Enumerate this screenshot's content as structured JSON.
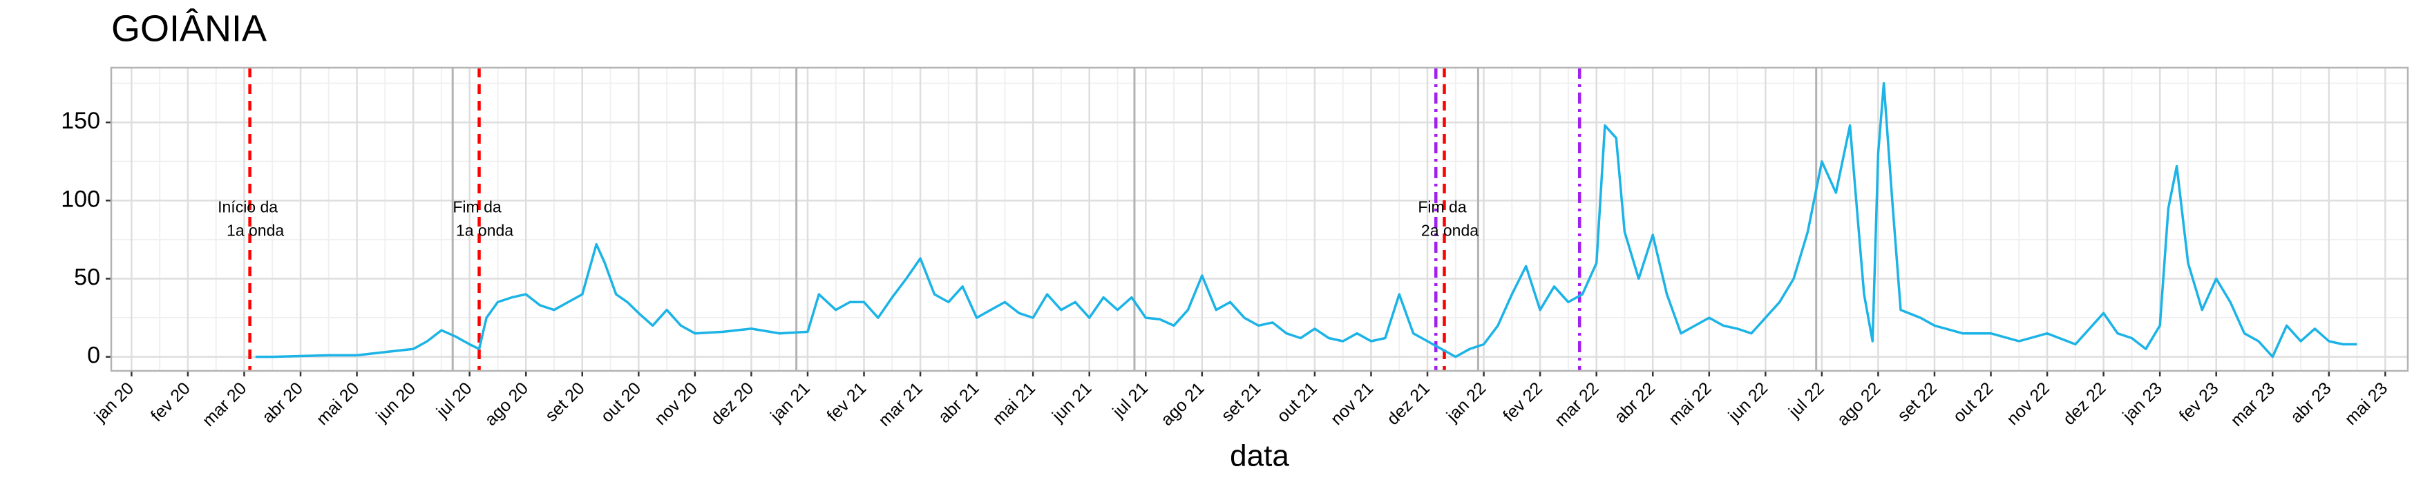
{
  "chart_data": {
    "type": "line",
    "title": "GOIÂNIA",
    "x_label": "data",
    "xlim": [
      -0.36,
      40.4
    ],
    "ylim": [
      -9,
      185
    ],
    "grid": true,
    "xticks": [
      {
        "value": 0,
        "label": "jan 20"
      },
      {
        "value": 1,
        "label": "fev 20"
      },
      {
        "value": 2,
        "label": "mar 20"
      },
      {
        "value": 3,
        "label": "abr 20"
      },
      {
        "value": 4,
        "label": "mai 20"
      },
      {
        "value": 5,
        "label": "jun 20"
      },
      {
        "value": 6,
        "label": "jul 20"
      },
      {
        "value": 7,
        "label": "ago 20"
      },
      {
        "value": 8,
        "label": "set 20"
      },
      {
        "value": 9,
        "label": "out 20"
      },
      {
        "value": 10,
        "label": "nov 20"
      },
      {
        "value": 11,
        "label": "dez 20"
      },
      {
        "value": 12,
        "label": "jan 21"
      },
      {
        "value": 13,
        "label": "fev 21"
      },
      {
        "value": 14,
        "label": "mar 21"
      },
      {
        "value": 15,
        "label": "abr 21"
      },
      {
        "value": 16,
        "label": "mai 21"
      },
      {
        "value": 17,
        "label": "jun 21"
      },
      {
        "value": 18,
        "label": "jul 21"
      },
      {
        "value": 19,
        "label": "ago 21"
      },
      {
        "value": 20,
        "label": "set 21"
      },
      {
        "value": 21,
        "label": "out 21"
      },
      {
        "value": 22,
        "label": "nov 21"
      },
      {
        "value": 23,
        "label": "dez 21"
      },
      {
        "value": 24,
        "label": "jan 22"
      },
      {
        "value": 25,
        "label": "fev 22"
      },
      {
        "value": 26,
        "label": "mar 22"
      },
      {
        "value": 27,
        "label": "abr 22"
      },
      {
        "value": 28,
        "label": "mai 22"
      },
      {
        "value": 29,
        "label": "jun 22"
      },
      {
        "value": 30,
        "label": "jul 22"
      },
      {
        "value": 31,
        "label": "ago 22"
      },
      {
        "value": 32,
        "label": "set 22"
      },
      {
        "value": 33,
        "label": "out 22"
      },
      {
        "value": 34,
        "label": "nov 22"
      },
      {
        "value": 35,
        "label": "dez 22"
      },
      {
        "value": 36,
        "label": "jan 23"
      },
      {
        "value": 37,
        "label": "fev 23"
      },
      {
        "value": 38,
        "label": "mar 23"
      },
      {
        "value": 39,
        "label": "abr 23"
      },
      {
        "value": 40,
        "label": "mai 23"
      }
    ],
    "yticks": [
      0,
      50,
      100,
      150
    ],
    "series": [
      {
        "color": "#1cb3e6",
        "x": [
          2.2,
          2.5,
          3,
          3.5,
          4,
          4.5,
          5,
          5.25,
          5.5,
          5.75,
          6,
          6.17,
          6.3,
          6.5,
          6.75,
          7,
          7.25,
          7.5,
          7.75,
          8,
          8.25,
          8.4,
          8.6,
          8.8,
          9,
          9.25,
          9.5,
          9.75,
          10,
          10.5,
          11,
          11.5,
          12,
          12.2,
          12.5,
          12.75,
          13,
          13.25,
          13.5,
          13.75,
          14,
          14.25,
          14.5,
          14.75,
          15,
          15.25,
          15.5,
          15.75,
          16,
          16.25,
          16.5,
          16.75,
          17,
          17.25,
          17.5,
          17.75,
          18,
          18.25,
          18.5,
          18.75,
          19,
          19.25,
          19.5,
          19.75,
          20,
          20.25,
          20.5,
          20.75,
          21,
          21.25,
          21.5,
          21.75,
          22,
          22.25,
          22.5,
          22.75,
          23,
          23.25,
          23.5,
          23.75,
          24,
          24.25,
          24.5,
          24.75,
          25,
          25.25,
          25.5,
          25.75,
          26,
          26.15,
          26.35,
          26.5,
          26.75,
          27,
          27.25,
          27.5,
          27.75,
          28,
          28.25,
          28.5,
          28.75,
          29,
          29.25,
          29.5,
          29.75,
          30,
          30.25,
          30.5,
          30.75,
          30.9,
          31,
          31.1,
          31.25,
          31.4,
          31.75,
          32,
          32.5,
          33,
          33.5,
          34,
          34.5,
          35,
          35.25,
          35.5,
          35.75,
          36,
          36.15,
          36.3,
          36.5,
          36.75,
          37,
          37.25,
          37.5,
          37.75,
          38,
          38.25,
          38.5,
          38.75,
          39,
          39.25,
          39.5
        ],
        "values": [
          0,
          0,
          0.5,
          1,
          1,
          3,
          5,
          10,
          17,
          13,
          8,
          5,
          25,
          35,
          38,
          40,
          33,
          30,
          35,
          40,
          72,
          60,
          40,
          35,
          28,
          20,
          30,
          20,
          15,
          16,
          18,
          15,
          16,
          40,
          30,
          35,
          35,
          25,
          38,
          50,
          63,
          40,
          35,
          45,
          25,
          30,
          35,
          28,
          25,
          40,
          30,
          35,
          25,
          38,
          30,
          38,
          25,
          24,
          20,
          30,
          52,
          30,
          35,
          25,
          20,
          22,
          15,
          12,
          18,
          12,
          10,
          15,
          10,
          12,
          40,
          15,
          10,
          5,
          0,
          5,
          8,
          20,
          40,
          58,
          30,
          45,
          35,
          40,
          60,
          148,
          140,
          80,
          50,
          78,
          40,
          15,
          20,
          25,
          20,
          18,
          15,
          25,
          35,
          50,
          80,
          125,
          105,
          148,
          40,
          10,
          130,
          175,
          100,
          30,
          25,
          20,
          15,
          15,
          10,
          15,
          8,
          28,
          15,
          12,
          5,
          20,
          95,
          122,
          60,
          30,
          50,
          35,
          15,
          10,
          0,
          20,
          10,
          18,
          10,
          8,
          8
        ]
      }
    ],
    "vlines": [
      {
        "x": 5.7,
        "color": "#b3b3b3",
        "style": "solid"
      },
      {
        "x": 11.8,
        "color": "#b3b3b3",
        "style": "solid"
      },
      {
        "x": 17.8,
        "color": "#b3b3b3",
        "style": "solid"
      },
      {
        "x": 23.9,
        "color": "#b3b3b3",
        "style": "solid"
      },
      {
        "x": 29.9,
        "color": "#b3b3b3",
        "style": "solid"
      },
      {
        "x": 2.1,
        "color": "#ff0000",
        "style": "dashed"
      },
      {
        "x": 6.17,
        "color": "#ff0000",
        "style": "dashed"
      },
      {
        "x": 23.3,
        "color": "#ff0000",
        "style": "dashed"
      },
      {
        "x": 23.15,
        "color": "#a020f0",
        "style": "dashdot"
      },
      {
        "x": 25.7,
        "color": "#a020f0",
        "style": "dashdot"
      }
    ],
    "annotations": [
      {
        "x": 2.1,
        "y": 95,
        "lines": [
          "Início da",
          "1a onda"
        ]
      },
      {
        "x": 6.17,
        "y": 95,
        "lines": [
          "Fim da",
          "1a onda"
        ]
      },
      {
        "x": 23.3,
        "y": 95,
        "lines": [
          "Fim da",
          "2a onda"
        ]
      }
    ]
  }
}
